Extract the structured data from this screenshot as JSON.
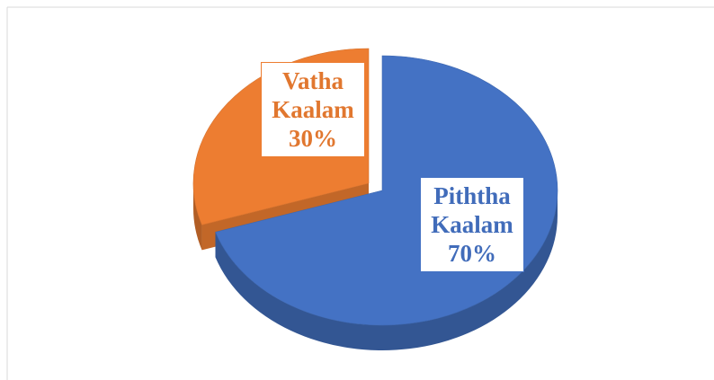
{
  "chart_data": {
    "type": "pie",
    "categories": [
      "Piththa Kaalam",
      "Vatha Kaalam"
    ],
    "values": [
      70,
      30
    ],
    "value_labels": [
      "70%",
      "30%"
    ],
    "colors": [
      "#4472c4",
      "#ed7d31"
    ]
  }
}
